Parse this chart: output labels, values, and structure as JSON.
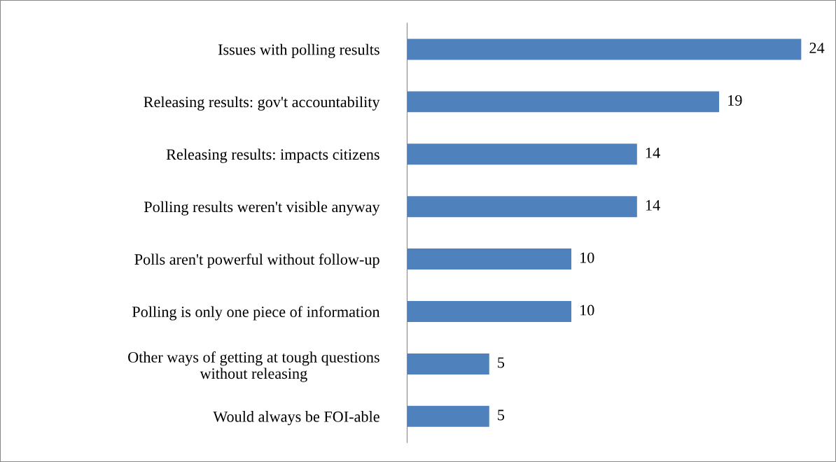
{
  "chart_data": {
    "type": "bar",
    "orientation": "horizontal",
    "categories": [
      "Issues with polling results",
      "Releasing results: gov't accountability",
      "Releasing results: impacts citizens",
      "Polling results weren't visible anyway",
      "Polls aren't powerful without follow-up",
      "Polling is only one piece of information",
      "Other ways of getting at tough questions\nwithout releasing",
      "Would always be FOI-able"
    ],
    "values": [
      24,
      19,
      14,
      14,
      10,
      10,
      5,
      5
    ],
    "color": "#4f81bd",
    "data_labels": true,
    "grid": false,
    "legend": false,
    "tick_labels": "y"
  }
}
